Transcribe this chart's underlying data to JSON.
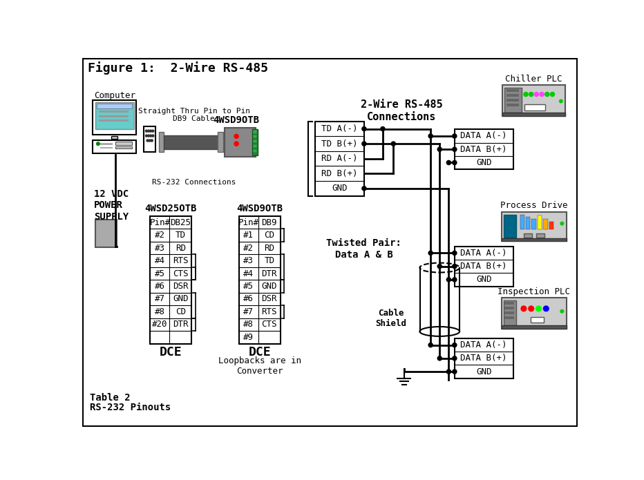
{
  "title": "Figure 1:  2-Wire RS-485",
  "bg_color": "#ffffff",
  "converter_top_label": "4WSD9OTB",
  "db25_label": "4WSD25OTB",
  "db9_label": "4WSD9OTB",
  "rs232_label": "RS-232 Connections",
  "computer_label": "Computer",
  "cable_label": "Straight Thru Pin to Pin\nDB9 Cable",
  "rs485_label": "2-Wire RS-485\nConnections",
  "twisted_label": "Twisted Pair:\nData A & B",
  "cable_shield_label": "Cable\nShield",
  "chiller_label": "Chiller PLC",
  "drive_label": "Process Drive",
  "inspection_label": "Inspection PLC",
  "power_label": "12 VDC\nPOWER\nSUPPLY",
  "table_label": "Table 2",
  "table_label2": "RS-232 Pinouts",
  "dce_label1": "DCE",
  "dce_label2": "DCE",
  "loopback_label": "Loopbacks are in\nConverter",
  "converter_rows": [
    "TD A(-)",
    "TD B(+)",
    "RD A(-)",
    "RD B(+)",
    "GND"
  ],
  "data_rows": [
    "DATA A(-)",
    "DATA B(+)",
    "GND"
  ],
  "db25_rows": [
    [
      "Pin#",
      "DB25"
    ],
    [
      "#2",
      "TD"
    ],
    [
      "#3",
      "RD"
    ],
    [
      "#4",
      "RTS"
    ],
    [
      "#5",
      "CTS"
    ],
    [
      "#6",
      "DSR"
    ],
    [
      "#7",
      "GND"
    ],
    [
      "#8",
      "CD"
    ],
    [
      "#20",
      "DTR"
    ],
    [
      "",
      ""
    ]
  ],
  "db9_rows": [
    [
      "Pin#",
      "DB9"
    ],
    [
      "#1",
      "CD"
    ],
    [
      "#2",
      "RD"
    ],
    [
      "#3",
      "TD"
    ],
    [
      "#4",
      "DTR"
    ],
    [
      "#5",
      "GND"
    ],
    [
      "#6",
      "DSR"
    ],
    [
      "#7",
      "RTS"
    ],
    [
      "#8",
      "CTS"
    ],
    [
      "#9",
      ""
    ]
  ]
}
